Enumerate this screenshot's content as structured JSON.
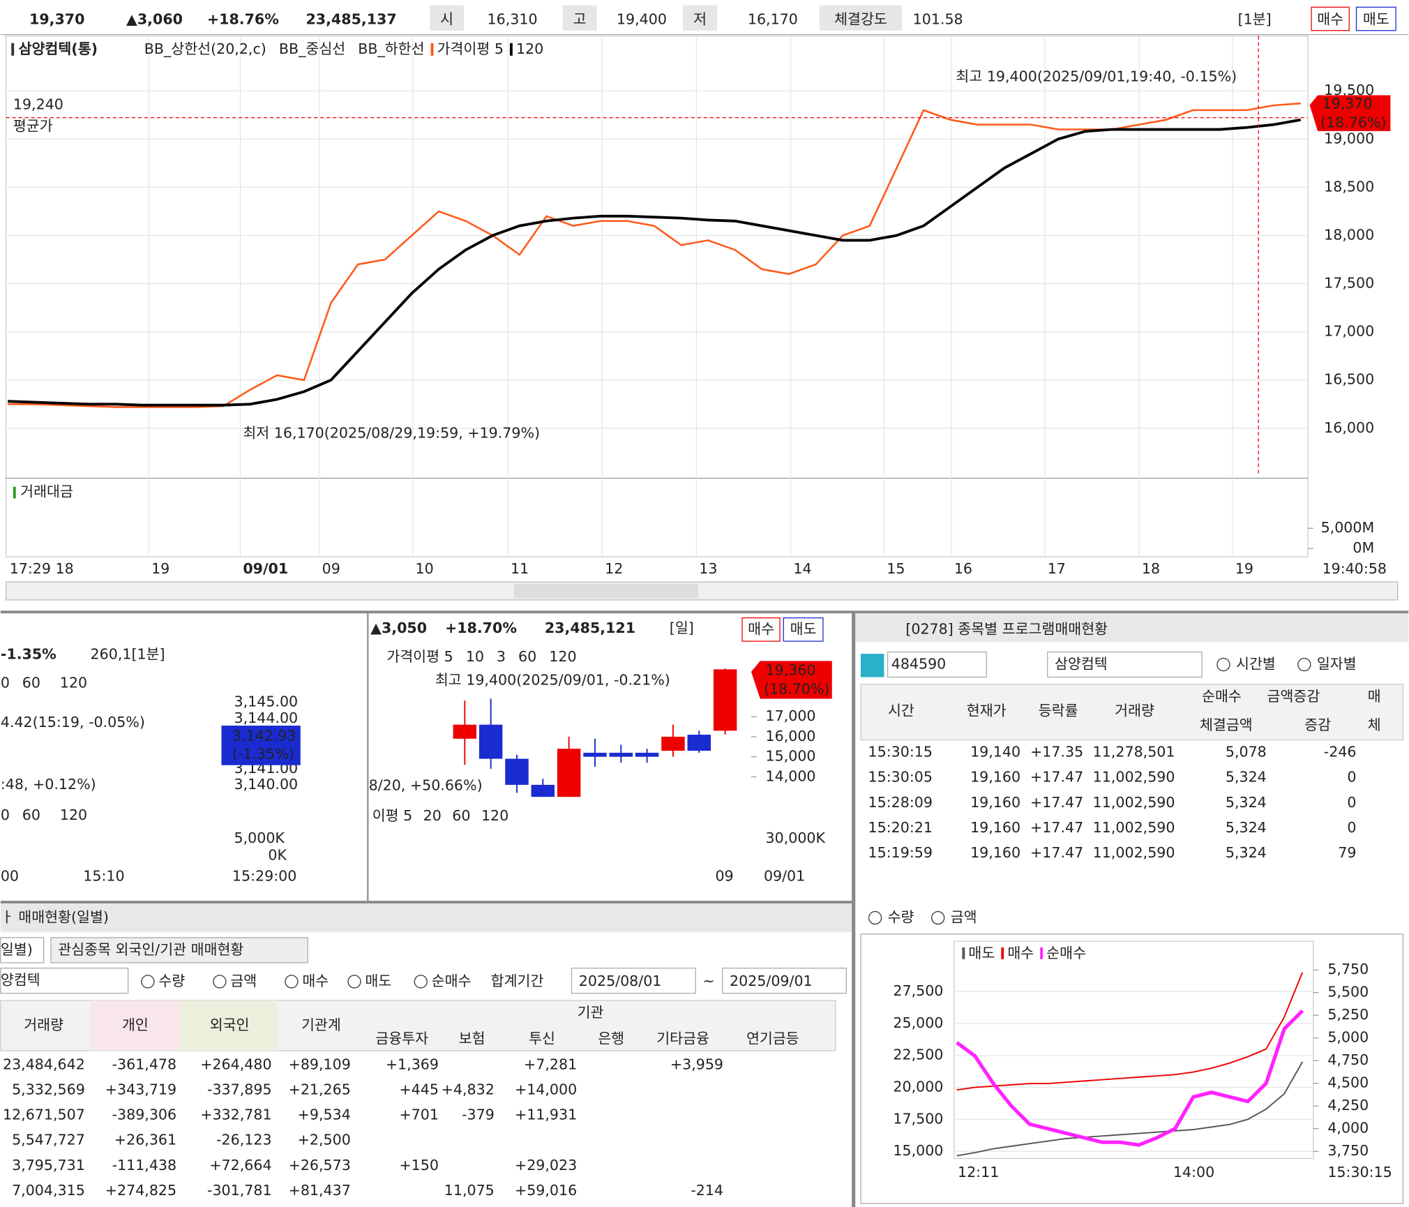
{
  "top_bar": {
    "price": "19,370",
    "change": "▲3,060",
    "rate": "+18.76%",
    "volume": "23,485,137",
    "open_label": "시",
    "open": "16,310",
    "high_label": "고",
    "high": "19,400",
    "low_label": "저",
    "low": "16,170",
    "strength_label": "체결강도",
    "strength": "101.58",
    "interval": "[1분]",
    "buy": "매수",
    "sell": "매도"
  },
  "chart_data": [
    {
      "type": "line",
      "title": "삼양컴텍(통)",
      "legend_extra": [
        "BB_상한선(20,2,c)",
        "BB_중심선",
        "BB_하한선"
      ],
      "series": [
        {
          "name": "가격이평 5",
          "color": "#ff5a1a",
          "values": [
            16250,
            16250,
            16240,
            16230,
            16220,
            16220,
            16220,
            16220,
            16230,
            16400,
            16550,
            16500,
            17300,
            17700,
            17750,
            18000,
            18250,
            18150,
            18000,
            17800,
            18200,
            18100,
            18150,
            18150,
            18100,
            17900,
            17950,
            17850,
            17650,
            17600,
            17700,
            18000,
            18100,
            18700,
            19300,
            19200,
            19150,
            19150,
            19150,
            19100,
            19100,
            19100,
            19150,
            19200,
            19300,
            19300,
            19300,
            19350,
            19370
          ]
        },
        {
          "name": "120",
          "color": "#000000",
          "values": [
            16280,
            16270,
            16260,
            16250,
            16250,
            16240,
            16240,
            16240,
            16240,
            16250,
            16300,
            16380,
            16500,
            16800,
            17100,
            17400,
            17650,
            17850,
            18000,
            18100,
            18150,
            18180,
            18200,
            18200,
            18190,
            18180,
            18160,
            18150,
            18100,
            18050,
            18000,
            17950,
            17950,
            18000,
            18100,
            18300,
            18500,
            18700,
            18850,
            19000,
            19080,
            19100,
            19100,
            19100,
            19100,
            19100,
            19120,
            19150,
            19200
          ]
        }
      ],
      "ylim": [
        15505,
        20070
      ],
      "yticks": [
        {
          "value": 16000,
          "label": "16,000"
        },
        {
          "value": 16500,
          "label": "16,500"
        },
        {
          "value": 17000,
          "label": "17,000"
        },
        {
          "value": 17500,
          "label": "17,500"
        },
        {
          "value": 18000,
          "label": "18,000"
        },
        {
          "value": 18500,
          "label": "18,500"
        },
        {
          "value": 19000,
          "label": "19,000"
        },
        {
          "value": 19500,
          "label": "19,500"
        }
      ],
      "x_labels": [
        "17:29 18",
        "19",
        "09/01",
        "09",
        "10",
        "11",
        "12",
        "13",
        "14",
        "15",
        "16",
        "17",
        "18",
        "19",
        "19:40:58"
      ],
      "high_note": "최고 19,400(2025/09/01,19:40, -0.15%)",
      "low_note": "최저 16,170(2025/08/29,19:59, +19.79%)",
      "avg_value": "19,240",
      "avg_label": "평균가",
      "current": "19,370",
      "current_rate": "(18.76%)",
      "volume_title": "거래대금",
      "volume_ylim": [
        -2045,
        17273
      ],
      "volume_yticks": [
        {
          "value": 5000,
          "label": "5,000M"
        },
        {
          "value": 0,
          "label": "0M"
        }
      ]
    },
    {
      "type": "candlestick",
      "price_change": "▲3,050",
      "rate": "+18.70%",
      "volume": "23,485,121",
      "interval": "[일]",
      "buy": "매수",
      "sell": "매도",
      "legend": [
        "가격이평 5",
        "10",
        "3",
        "60",
        "120"
      ],
      "high_note": "최고 19,400(2025/09/01, -0.21%)",
      "low_note": "8/20, +50.66%)",
      "current": "19,360",
      "current_rate": "(18.70%)",
      "open": [
        15900,
        16600,
        14900,
        13600,
        13000,
        15200,
        15200,
        15200,
        15300,
        16100,
        16300
      ],
      "close": [
        16600,
        14900,
        13600,
        13000,
        15400,
        15000,
        15000,
        15000,
        16000,
        15300,
        19360
      ],
      "high": [
        17800,
        17900,
        15100,
        13900,
        16000,
        15900,
        15600,
        15400,
        16600,
        16300,
        19400
      ],
      "low": [
        14600,
        14400,
        13200,
        13000,
        13000,
        14500,
        14700,
        14700,
        15000,
        15200,
        16100
      ],
      "ylim": [
        12880,
        20583
      ],
      "yticks": [
        {
          "value": 17000,
          "label": "17,000"
        },
        {
          "value": 16000,
          "label": "16,000"
        },
        {
          "value": 15000,
          "label": "15,000"
        },
        {
          "value": 14000,
          "label": "14,000"
        }
      ],
      "volume_legend": [
        "이평 5",
        "20",
        "60",
        "120"
      ],
      "volume_tick": "30,000K",
      "x_labels": [
        "09",
        "09/01"
      ]
    },
    {
      "type": "line",
      "legend_title": "순매수",
      "series": [
        {
          "name": "매도",
          "color": "#555555",
          "values": [
            14650,
            14900,
            15200,
            15400,
            15600,
            15800,
            16000,
            16100,
            16200,
            16300,
            16400,
            16500,
            16600,
            16700,
            16900,
            17100,
            17500,
            18300,
            19500,
            22000
          ]
        },
        {
          "name": "매수",
          "color": "#ee0000",
          "values": [
            19800,
            20000,
            20100,
            20200,
            20300,
            20300,
            20400,
            20500,
            20600,
            20700,
            20800,
            20900,
            21000,
            21200,
            21500,
            21900,
            22400,
            23000,
            25500,
            29000
          ]
        },
        {
          "name": "순매수",
          "color": "#ff22ff",
          "axis": "y2",
          "values": [
            4950,
            4800,
            4500,
            4250,
            4050,
            4000,
            3950,
            3900,
            3850,
            3850,
            3820,
            3900,
            4000,
            4350,
            4400,
            4350,
            4300,
            4500,
            5100,
            5300
          ]
        }
      ],
      "ylim": [
        14438,
        31292
      ],
      "yticks": [
        {
          "value": 15000,
          "label": "15,000"
        },
        {
          "value": 17500,
          "label": "17,500"
        },
        {
          "value": 20000,
          "label": "20,000"
        },
        {
          "value": 22500,
          "label": "22,500"
        },
        {
          "value": 25000,
          "label": "25,000"
        },
        {
          "value": 27500,
          "label": "27,500"
        }
      ],
      "y2lim": [
        3671,
        6047
      ],
      "y2ticks": [
        {
          "value": 3750,
          "label": "3,750"
        },
        {
          "value": 4000,
          "label": "4,000"
        },
        {
          "value": 4250,
          "label": "4,250"
        },
        {
          "value": 4500,
          "label": "4,500"
        },
        {
          "value": 4750,
          "label": "4,750"
        },
        {
          "value": 5000,
          "label": "5,000"
        },
        {
          "value": 5250,
          "label": "5,250"
        },
        {
          "value": 5500,
          "label": "5,500"
        },
        {
          "value": 5750,
          "label": "5,750"
        }
      ],
      "x_labels": [
        "12:11",
        "14:00",
        "15:30:15"
      ]
    }
  ],
  "mini_chart": {
    "rate": "-1.35%",
    "interval": "260,1[1분]",
    "legend": [
      "0",
      "60",
      "120"
    ],
    "ticks": [
      "3,145.00",
      "3,144.00",
      "3,141.00",
      "3,140.00"
    ],
    "current": "3,142.93",
    "current_rate": "(-1.35%)",
    "note1": "4.42(15:19, -0.05%)",
    "note2": ":48, +0.12%)",
    "vol_legend": [
      "0",
      "60",
      "120"
    ],
    "vol_ticks": [
      "5,000K",
      "0K"
    ],
    "x_labels": [
      "00",
      "15:10",
      "15:29:00"
    ]
  },
  "program": {
    "title": "[0278] 종목별 프로그램매매현황",
    "code": "484590",
    "name": "삼양컴텍",
    "radio": [
      "시간별",
      "일자별"
    ],
    "radio2": [
      "수량",
      "금액"
    ],
    "headers": [
      "시간",
      "현재가",
      "등락률",
      "거래량",
      "순매수",
      "금액증감",
      "매",
      "체결금액",
      "증감",
      "체"
    ],
    "rows": [
      [
        "15:30:15",
        "19,140",
        "+17.35",
        "11,278,501",
        "5,078",
        "-246"
      ],
      [
        "15:30:05",
        "19,160",
        "+17.47",
        "11,002,590",
        "5,324",
        "0"
      ],
      [
        "15:28:09",
        "19,160",
        "+17.47",
        "11,002,590",
        "5,324",
        "0"
      ],
      [
        "15:20:21",
        "19,160",
        "+17.47",
        "11,002,590",
        "5,324",
        "0"
      ],
      [
        "15:19:59",
        "19,160",
        "+17.47",
        "11,002,590",
        "5,324",
        "79"
      ]
    ]
  },
  "investor": {
    "title": "ㅏ 매매현황(일별)",
    "tabs": [
      "일별)",
      "관심종목 외국인/기관 매매현황"
    ],
    "stock": "양컴텍",
    "radio": [
      "수량",
      "금액",
      "매수",
      "매도",
      "순매수"
    ],
    "period_label": "합계기간",
    "from": "2025/08/01",
    "tilde": "~",
    "to": "2025/09/01",
    "headers": [
      "거래량",
      "개인",
      "외국인",
      "기관계"
    ],
    "group": "기관",
    "subheaders": [
      "금융투자",
      "보험",
      "투신",
      "은행",
      "기타금융",
      "연기금등"
    ],
    "rows": [
      [
        "23,484,642",
        "-361,478",
        "+264,480",
        "+89,109",
        "+1,369",
        null,
        "+7,281",
        null,
        "+3,959",
        null
      ],
      [
        "5,332,569",
        "+343,719",
        "-337,895",
        "+21,265",
        "+445",
        "+4,832",
        "+14,000",
        null,
        null,
        null
      ],
      [
        "12,671,507",
        "-389,306",
        "+332,781",
        "+9,534",
        "+701",
        "-379",
        "+11,931",
        null,
        null,
        null
      ],
      [
        "5,547,727",
        "+26,361",
        "-26,123",
        "+2,500",
        null,
        null,
        null,
        null,
        null,
        null
      ],
      [
        "3,795,731",
        "-111,438",
        "+72,664",
        "+26,573",
        "+150",
        null,
        "+29,023",
        null,
        null,
        null
      ],
      [
        "7,004,315",
        "+274,825",
        "-301,781",
        "+81,437",
        null,
        "11,075",
        "+59,016",
        null,
        "-214",
        null
      ]
    ]
  }
}
